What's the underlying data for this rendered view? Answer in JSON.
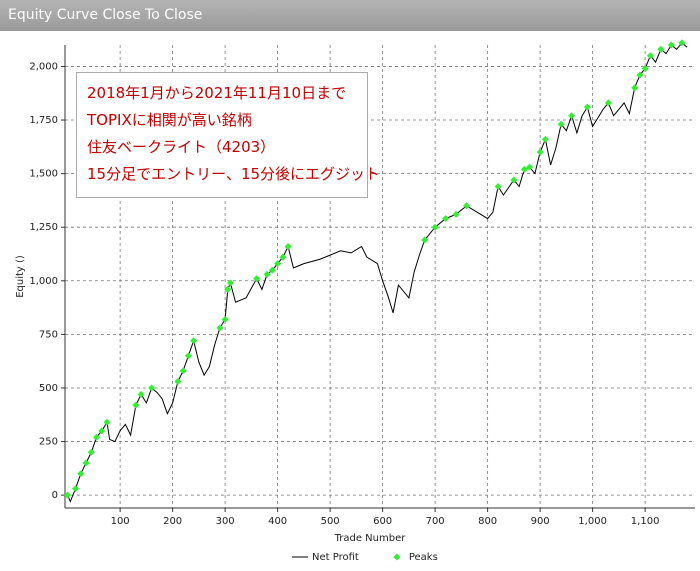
{
  "chart_data": {
    "type": "line",
    "title": "Equity Curve Close To Close",
    "xlabel": "Trade Number",
    "ylabel": "Equity ()",
    "annotation": [
      "2018年1月から2021年11月10日まで",
      "TOPIXに相関が高い銘柄",
      "住友ベークライト（4203）",
      "15分足でエントリー、15分後にエグジット"
    ],
    "xlim": [
      -5,
      1195
    ],
    "ylim": [
      -60,
      2100
    ],
    "xticks": [
      100,
      200,
      300,
      400,
      500,
      600,
      700,
      800,
      900,
      {
        "value": 1000,
        "label": "1,000"
      },
      {
        "value": 1100,
        "label": "1,100"
      }
    ],
    "yticks": [
      0,
      250,
      500,
      750,
      {
        "value": 1000,
        "label": "1,000"
      },
      {
        "value": 1250,
        "label": "1,250"
      },
      {
        "value": 1500,
        "label": "1,500"
      },
      {
        "value": 1750,
        "label": "1,750"
      },
      {
        "value": 2000,
        "label": "2,000"
      }
    ],
    "grid": true,
    "legend": "bottom",
    "series": [
      {
        "name": "Net Profit",
        "color": "#000000",
        "x": [
          0,
          5,
          15,
          25,
          35,
          45,
          55,
          65,
          75,
          80,
          90,
          100,
          110,
          120,
          130,
          140,
          150,
          160,
          170,
          180,
          190,
          200,
          210,
          220,
          230,
          240,
          250,
          260,
          270,
          280,
          290,
          300,
          305,
          310,
          320,
          340,
          360,
          370,
          380,
          390,
          400,
          410,
          420,
          430,
          450,
          480,
          500,
          520,
          540,
          560,
          570,
          590,
          600,
          610,
          620,
          630,
          650,
          660,
          670,
          680,
          700,
          720,
          740,
          760,
          780,
          800,
          810,
          820,
          830,
          850,
          860,
          870,
          880,
          890,
          900,
          910,
          920,
          930,
          940,
          950,
          960,
          970,
          980,
          990,
          1000,
          1010,
          1020,
          1030,
          1040,
          1050,
          1060,
          1070,
          1080,
          1090,
          1100,
          1110,
          1120,
          1130,
          1140,
          1150,
          1160,
          1170,
          1180
        ],
        "values": [
          0,
          -30,
          30,
          100,
          150,
          200,
          270,
          300,
          340,
          260,
          250,
          300,
          330,
          280,
          420,
          470,
          430,
          500,
          480,
          450,
          380,
          430,
          530,
          580,
          650,
          720,
          620,
          560,
          600,
          700,
          780,
          820,
          960,
          990,
          900,
          920,
          1010,
          960,
          1030,
          1050,
          1080,
          1110,
          1160,
          1060,
          1080,
          1100,
          1120,
          1140,
          1130,
          1160,
          1110,
          1080,
          1000,
          930,
          850,
          980,
          920,
          1040,
          1120,
          1190,
          1250,
          1290,
          1310,
          1350,
          1320,
          1290,
          1320,
          1440,
          1400,
          1470,
          1440,
          1520,
          1530,
          1500,
          1600,
          1660,
          1540,
          1620,
          1730,
          1700,
          1770,
          1690,
          1770,
          1810,
          1720,
          1760,
          1800,
          1830,
          1770,
          1800,
          1830,
          1780,
          1900,
          1960,
          1990,
          2050,
          2020,
          2080,
          2060,
          2100,
          2080,
          2110,
          2090
        ]
      },
      {
        "name": "Peaks",
        "color": "#33ee33",
        "marker": "diamond",
        "x": [
          0,
          15,
          25,
          35,
          45,
          55,
          65,
          75,
          130,
          140,
          160,
          210,
          220,
          230,
          240,
          290,
          300,
          305,
          310,
          360,
          380,
          390,
          400,
          410,
          420,
          680,
          700,
          720,
          740,
          760,
          820,
          850,
          870,
          880,
          900,
          910,
          940,
          960,
          990,
          1030,
          1080,
          1090,
          1100,
          1110,
          1130,
          1150,
          1170
        ],
        "values": [
          0,
          30,
          100,
          150,
          200,
          270,
          300,
          340,
          420,
          470,
          500,
          530,
          580,
          650,
          720,
          780,
          820,
          960,
          990,
          1010,
          1030,
          1050,
          1080,
          1110,
          1160,
          1190,
          1250,
          1290,
          1310,
          1350,
          1440,
          1470,
          1520,
          1530,
          1600,
          1660,
          1730,
          1770,
          1810,
          1830,
          1900,
          1960,
          1990,
          2050,
          2080,
          2100,
          2110
        ]
      }
    ]
  }
}
